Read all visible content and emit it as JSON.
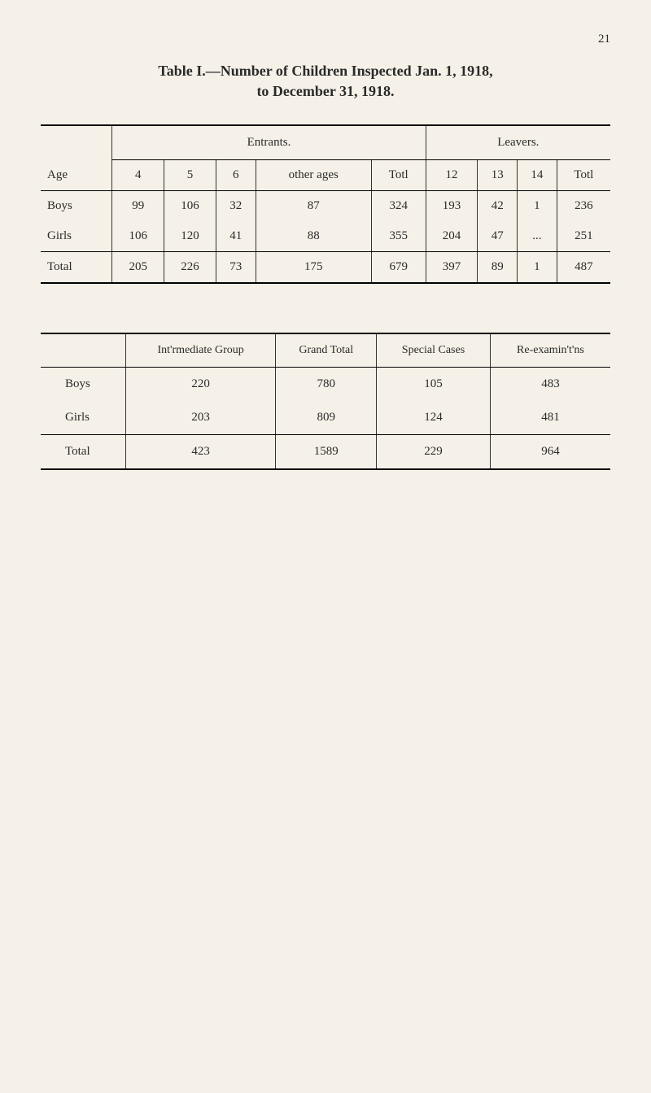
{
  "page_number": "21",
  "title": {
    "line1": "Table I.—Number of Children Inspected Jan. 1, 1918,",
    "line2": "to December 31, 1918."
  },
  "table1": {
    "group_headers": {
      "entrants": "Entrants.",
      "leavers": "Leavers."
    },
    "columns": {
      "age": "Age",
      "c4": "4",
      "c5": "5",
      "c6": "6",
      "other_ages": "other ages",
      "totl1": "Totl",
      "c12": "12",
      "c13": "13",
      "c14": "14",
      "totl2": "Totl"
    },
    "rows": [
      {
        "label": "Boys",
        "c4": "99",
        "c5": "106",
        "c6": "32",
        "other": "87",
        "t1": "324",
        "c12": "193",
        "c13": "42",
        "c14": "1",
        "t2": "236"
      },
      {
        "label": "Girls",
        "c4": "106",
        "c5": "120",
        "c6": "41",
        "other": "88",
        "t1": "355",
        "c12": "204",
        "c13": "47",
        "c14": "...",
        "t2": "251"
      }
    ],
    "total": {
      "label": "Total",
      "c4": "205",
      "c5": "226",
      "c6": "73",
      "other": "175",
      "t1": "679",
      "c12": "397",
      "c13": "89",
      "c14": "1",
      "t2": "487"
    }
  },
  "table2": {
    "columns": {
      "blank": "",
      "intermediate": "Int'rmediate Group",
      "grand": "Grand Total",
      "special": "Special Cases",
      "reexam": "Re-examin't'ns"
    },
    "rows": [
      {
        "label": "Boys",
        "inter": "220",
        "grand": "780",
        "special": "105",
        "reexam": "483"
      },
      {
        "label": "Girls",
        "inter": "203",
        "grand": "809",
        "special": "124",
        "reexam": "481"
      }
    ],
    "total": {
      "label": "Total",
      "inter": "423",
      "grand": "1589",
      "special": "229",
      "reexam": "964"
    }
  },
  "style": {
    "background_color": "#f5f1e8",
    "text_color": "#2a2a2a",
    "font_family": "Georgia, serif",
    "heavy_border": "2.5px solid #000",
    "light_border": "1px solid #333"
  }
}
